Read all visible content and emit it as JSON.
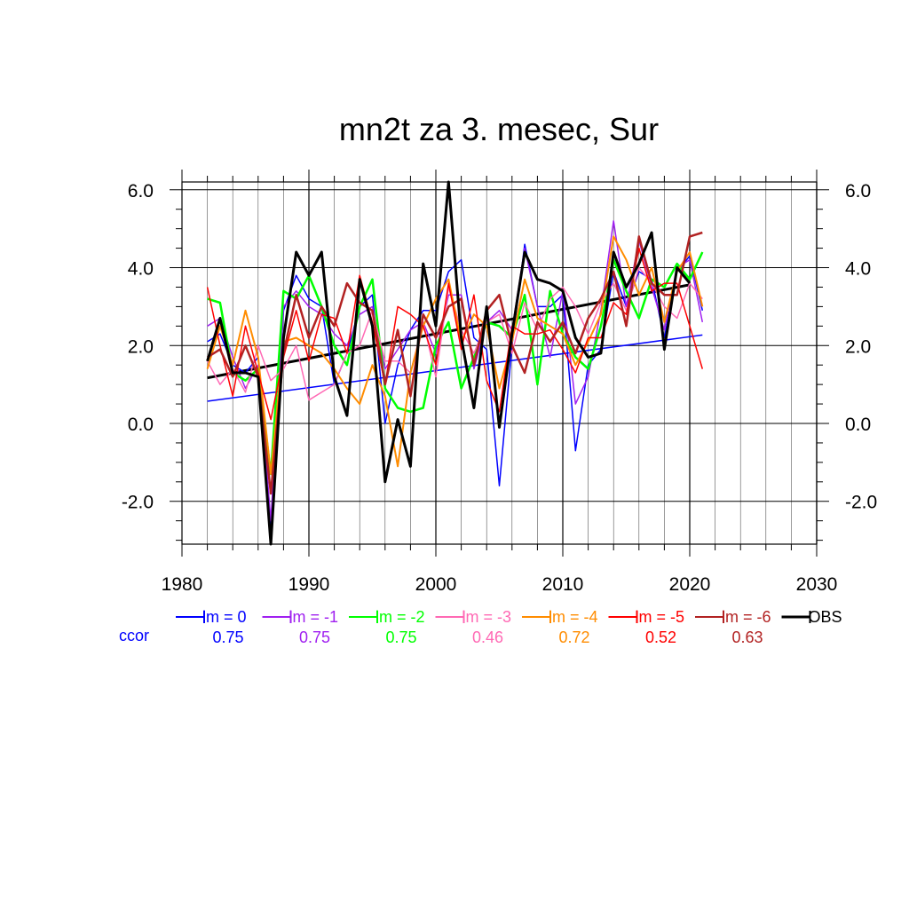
{
  "chart_data": {
    "type": "line",
    "title": "mn2t za 3. mesec, Sur",
    "xlabel": "",
    "ylabel": "",
    "xlim": [
      1980,
      2030
    ],
    "ylim": [
      -3.1,
      6.2
    ],
    "x_ticks": [
      "1980",
      "1990",
      "2000",
      "2010",
      "2020",
      "2030"
    ],
    "y_ticks": [
      "6.0",
      "4.0",
      "2.0",
      "0.0",
      "-2.0"
    ],
    "y_ticks_right": [
      "6.0",
      "4.0",
      "2.0",
      "0.0",
      "-2.0"
    ],
    "grid": true,
    "legend_position": "bottom",
    "ccor_label": "ccor",
    "x": [
      1982,
      1983,
      1984,
      1985,
      1986,
      1987,
      1988,
      1989,
      1990,
      1991,
      1992,
      1993,
      1994,
      1995,
      1996,
      1997,
      1998,
      1999,
      2000,
      2001,
      2002,
      2003,
      2004,
      2005,
      2006,
      2007,
      2008,
      2009,
      2010,
      2011,
      2012,
      2013,
      2014,
      2015,
      2016,
      2017,
      2018,
      2019,
      2020,
      2021
    ],
    "series": [
      {
        "name": "lm = 0",
        "color": "#0000ff",
        "ccor": "0.75",
        "width": 1.5,
        "values": [
          2.1,
          2.3,
          1.5,
          1.3,
          1.7,
          -2.6,
          2.9,
          3.8,
          3.2,
          3.0,
          1.0,
          1.8,
          3.0,
          3.3,
          0.0,
          1.5,
          2.4,
          2.9,
          2.9,
          3.9,
          4.2,
          2.2,
          1.9,
          -1.6,
          2.0,
          4.6,
          3.0,
          3.0,
          3.3,
          -0.7,
          1.5,
          1.9,
          3.9,
          3.0,
          3.9,
          3.7,
          2.2,
          3.9,
          4.3,
          2.9
        ],
        "trend": [
          0.57,
          2.27
        ]
      },
      {
        "name": "lm = -1",
        "color": "#a020f0",
        "ccor": "0.75",
        "width": 1.5,
        "values": [
          2.5,
          2.7,
          1.7,
          0.9,
          1.5,
          -2.5,
          3.0,
          3.4,
          3.0,
          2.8,
          2.3,
          2.0,
          2.8,
          3.0,
          1.4,
          1.9,
          2.4,
          2.6,
          1.8,
          3.3,
          3.3,
          1.4,
          2.6,
          2.9,
          2.4,
          4.5,
          3.0,
          1.7,
          3.4,
          0.5,
          1.2,
          2.9,
          5.2,
          3.0,
          4.7,
          3.5,
          2.4,
          4.0,
          4.2,
          2.6
        ]
      },
      {
        "name": "lm = -2",
        "color": "#00ff00",
        "ccor": "0.75",
        "width": 2.5,
        "values": [
          3.2,
          3.1,
          1.3,
          1.1,
          1.4,
          -1.3,
          3.4,
          3.2,
          3.8,
          3.0,
          2.0,
          1.5,
          3.0,
          3.7,
          0.9,
          0.4,
          0.3,
          0.4,
          2.0,
          2.6,
          0.9,
          1.7,
          2.6,
          2.5,
          2.2,
          3.3,
          1.0,
          3.4,
          2.3,
          1.7,
          1.4,
          2.5,
          4.2,
          3.4,
          2.7,
          3.7,
          3.5,
          4.1,
          3.7,
          4.4
        ]
      },
      {
        "name": "lm = -3",
        "color": "#ff69b4",
        "ccor": "0.46",
        "width": 1.5,
        "values": [
          1.6,
          1.0,
          1.4,
          0.8,
          2.0,
          1.1,
          1.4,
          2.0,
          0.6,
          0.8,
          1.0,
          1.8,
          2.0,
          2.9,
          1.6,
          1.6,
          1.3,
          2.6,
          1.2,
          3.5,
          2.4,
          1.8,
          2.6,
          2.8,
          1.8,
          3.1,
          2.4,
          3.2,
          3.5,
          3.0,
          2.3,
          3.1,
          3.6,
          2.9,
          4.0,
          3.6,
          3.0,
          2.7,
          3.6,
          3.2
        ]
      },
      {
        "name": "lm = -4",
        "color": "#ff8c00",
        "ccor": "0.72",
        "width": 2.0,
        "values": [
          1.4,
          2.5,
          1.5,
          2.9,
          1.7,
          -1.3,
          2.1,
          2.2,
          2.0,
          1.8,
          1.4,
          0.9,
          0.5,
          1.5,
          0.7,
          -1.1,
          1.3,
          2.5,
          3.2,
          3.7,
          2.1,
          2.8,
          2.5,
          0.9,
          2.1,
          3.7,
          2.7,
          2.5,
          2.3,
          1.5,
          2.1,
          2.8,
          4.8,
          4.2,
          3.3,
          4.0,
          2.6,
          3.9,
          4.4,
          3.0
        ]
      },
      {
        "name": "lm = -5",
        "color": "#ff0000",
        "ccor": "0.52",
        "width": 1.5,
        "values": [
          3.5,
          2.0,
          0.7,
          2.5,
          1.3,
          0.1,
          1.7,
          2.9,
          1.6,
          2.8,
          2.7,
          1.8,
          3.8,
          2.6,
          1.0,
          3.0,
          2.8,
          2.5,
          1.5,
          3.6,
          1.9,
          3.3,
          1.1,
          0.3,
          2.5,
          2.3,
          2.3,
          2.4,
          1.9,
          1.3,
          2.2,
          2.2,
          3.1,
          2.8,
          4.5,
          3.4,
          3.6,
          3.6,
          2.5,
          1.4
        ]
      },
      {
        "name": "lm = -6",
        "color": "#b22222",
        "ccor": "0.63",
        "width": 2.5,
        "values": [
          1.7,
          1.9,
          1.2,
          2.0,
          1.2,
          -1.8,
          1.8,
          3.3,
          2.2,
          3.0,
          2.5,
          3.6,
          3.1,
          2.9,
          1.0,
          2.4,
          0.7,
          2.8,
          2.2,
          3.0,
          3.2,
          1.5,
          2.9,
          3.3,
          2.0,
          1.3,
          2.6,
          2.1,
          2.6,
          1.8,
          2.7,
          3.2,
          3.9,
          2.5,
          4.8,
          3.6,
          3.3,
          3.3,
          4.8,
          4.9
        ]
      },
      {
        "name": "OBS",
        "color": "#000000",
        "ccor": "",
        "width": 3.0,
        "values": [
          1.6,
          2.7,
          1.3,
          1.3,
          1.2,
          -3.1,
          2.2,
          4.4,
          3.8,
          4.4,
          1.2,
          0.2,
          3.7,
          2.5,
          -1.5,
          0.1,
          -1.1,
          4.1,
          2.5,
          6.2,
          2.2,
          0.4,
          3.0,
          -0.1,
          2.3,
          4.4,
          3.7,
          3.6,
          3.4,
          2.2,
          1.7,
          1.8,
          4.4,
          3.5,
          4.1,
          4.9,
          1.9,
          4.0,
          3.6,
          null
        ],
        "trend": [
          1.17,
          3.56
        ]
      }
    ]
  }
}
